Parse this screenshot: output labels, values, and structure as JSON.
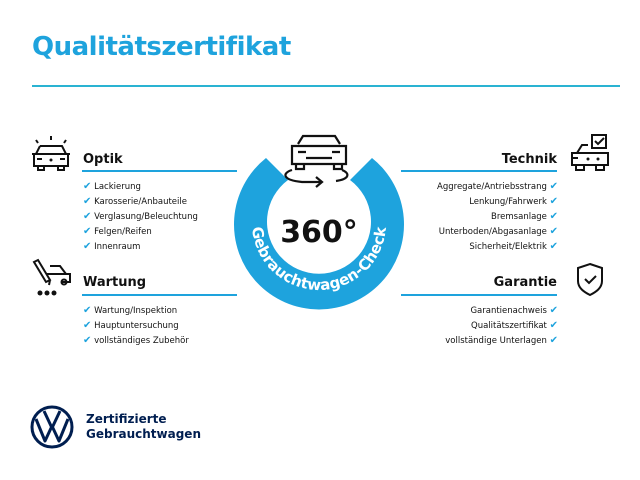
{
  "title": "Qualitätszertifikat",
  "center": {
    "big": "360°",
    "arc": "Gebrauchtwagen-Check"
  },
  "sections": {
    "optik": {
      "heading": "Optik",
      "items": [
        "Lackierung",
        "Karosserie/Anbauteile",
        "Verglasung/Beleuchtung",
        "Felgen/Reifen",
        "Innenraum"
      ]
    },
    "wartung": {
      "heading": "Wartung",
      "items": [
        "Wartung/Inspektion",
        "Hauptuntersuchung",
        "vollständiges Zubehör"
      ]
    },
    "technik": {
      "heading": "Technik",
      "items": [
        "Aggregate/Antriebsstrang",
        "Lenkung/Fahrwerk",
        "Bremsanlage",
        "Unterboden/Abgasanlage",
        "Sicherheit/Elektrik"
      ]
    },
    "garantie": {
      "heading": "Garantie",
      "items": [
        "Garantienachweis",
        "Qualitätszertifikat",
        "vollständige Unterlagen"
      ]
    }
  },
  "brand": {
    "line1": "Zertifizierte",
    "line2": "Gebrauchtwagen"
  },
  "colors": {
    "accent": "#1ea3dd",
    "brand": "#001e50"
  }
}
